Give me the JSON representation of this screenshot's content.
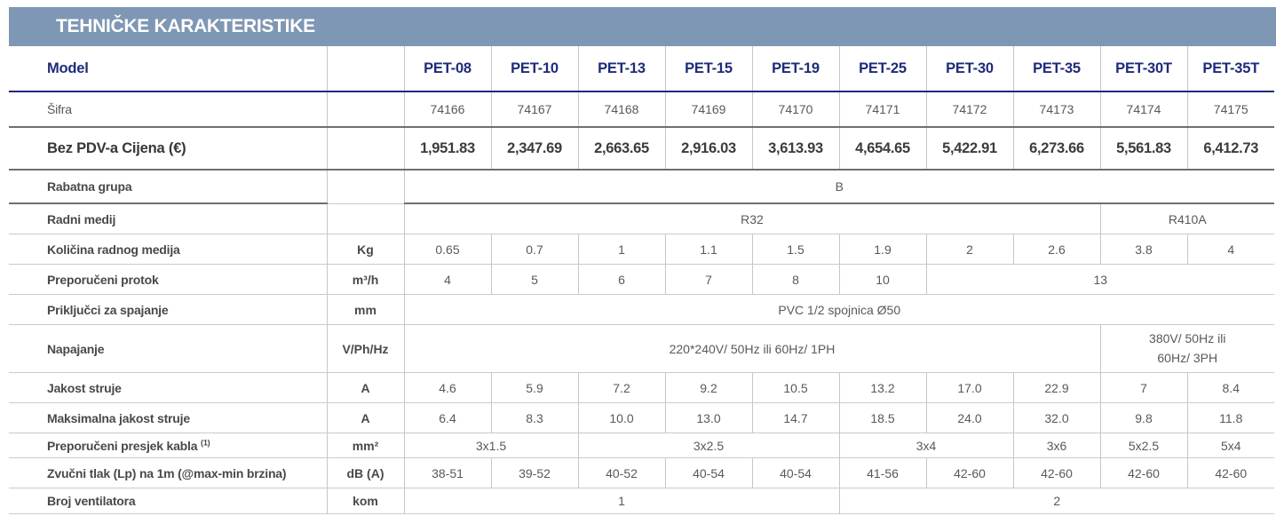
{
  "title": "TEHNIČKE KARAKTERISTIKE",
  "colors": {
    "header_bar": "#7e97b4",
    "model_navy": "#1e2b7b",
    "heavy_rule": "#6e6f71",
    "light_rule": "#c9cacb",
    "label_text": "#48494b",
    "value_text": "#58595c"
  },
  "table": {
    "rows": [
      {
        "id": "model",
        "label": "Model",
        "unit": "",
        "cells": [
          {
            "v": "PET-08"
          },
          {
            "v": "PET-10"
          },
          {
            "v": "PET-13"
          },
          {
            "v": "PET-15"
          },
          {
            "v": "PET-19"
          },
          {
            "v": "PET-25"
          },
          {
            "v": "PET-30"
          },
          {
            "v": "PET-35"
          },
          {
            "v": "PET-30T"
          },
          {
            "v": "PET-35T"
          }
        ]
      },
      {
        "id": "sifra",
        "label": "Šifra",
        "unit": "",
        "cells": [
          {
            "v": "74166"
          },
          {
            "v": "74167"
          },
          {
            "v": "74168"
          },
          {
            "v": "74169"
          },
          {
            "v": "74170"
          },
          {
            "v": "74171"
          },
          {
            "v": "74172"
          },
          {
            "v": "74173"
          },
          {
            "v": "74174"
          },
          {
            "v": "74175"
          }
        ]
      },
      {
        "id": "price",
        "label": "Bez PDV-a Cijena (€)",
        "unit": "",
        "cells": [
          {
            "v": "1,951.83"
          },
          {
            "v": "2,347.69"
          },
          {
            "v": "2,663.65"
          },
          {
            "v": "2,916.03"
          },
          {
            "v": "3,613.93"
          },
          {
            "v": "4,654.65"
          },
          {
            "v": "5,422.91"
          },
          {
            "v": "6,273.66"
          },
          {
            "v": "5,561.83"
          },
          {
            "v": "6,412.73"
          }
        ]
      },
      {
        "id": "rabatna",
        "label": "Rabatna grupa",
        "unit": "",
        "cells": [
          {
            "v": "B",
            "span": 10
          }
        ]
      },
      {
        "id": "radni",
        "label": "Radni medij",
        "unit": "",
        "cells": [
          {
            "v": "R32",
            "span": 8
          },
          {
            "v": "R410A",
            "span": 2
          }
        ]
      },
      {
        "id": "kolicina",
        "label": "Količina radnog medija",
        "unit": "Kg",
        "cells": [
          {
            "v": "0.65"
          },
          {
            "v": "0.7"
          },
          {
            "v": "1"
          },
          {
            "v": "1.1"
          },
          {
            "v": "1.5"
          },
          {
            "v": "1.9"
          },
          {
            "v": "2"
          },
          {
            "v": "2.6"
          },
          {
            "v": "3.8"
          },
          {
            "v": "4"
          }
        ]
      },
      {
        "id": "protok",
        "label": "Preporučeni protok",
        "unit": "m³/h",
        "cells": [
          {
            "v": "4"
          },
          {
            "v": "5"
          },
          {
            "v": "6"
          },
          {
            "v": "7"
          },
          {
            "v": "8"
          },
          {
            "v": "10"
          },
          {
            "v": "13",
            "span": 4
          }
        ]
      },
      {
        "id": "prikljucci",
        "label": "Priključci za spajanje",
        "unit": "mm",
        "cells": [
          {
            "v": "PVC 1/2 spojnica Ø50",
            "span": 10
          }
        ]
      },
      {
        "id": "napajanje",
        "label": "Napajanje",
        "unit": "V/Ph/Hz",
        "cells": [
          {
            "v": "220*240V/ 50Hz ili 60Hz/ 1PH",
            "span": 8
          },
          {
            "v": "380V/ 50Hz ili\n60Hz/ 3PH",
            "span": 2
          }
        ]
      },
      {
        "id": "jakost",
        "label": "Jakost struje",
        "unit": "A",
        "cells": [
          {
            "v": "4.6"
          },
          {
            "v": "5.9"
          },
          {
            "v": "7.2"
          },
          {
            "v": "9.2"
          },
          {
            "v": "10.5"
          },
          {
            "v": "13.2"
          },
          {
            "v": "17.0"
          },
          {
            "v": "22.9"
          },
          {
            "v": "7"
          },
          {
            "v": "8.4"
          }
        ]
      },
      {
        "id": "maks",
        "label": "Maksimalna jakost struje",
        "unit": "A",
        "cells": [
          {
            "v": "6.4"
          },
          {
            "v": "8.3"
          },
          {
            "v": "10.0"
          },
          {
            "v": "13.0"
          },
          {
            "v": "14.7"
          },
          {
            "v": "18.5"
          },
          {
            "v": "24.0"
          },
          {
            "v": "32.0"
          },
          {
            "v": "9.8"
          },
          {
            "v": "11.8"
          }
        ]
      },
      {
        "id": "presjek",
        "label": "Preporučeni presjek kabla",
        "label_sup": "(1)",
        "unit": "mm²",
        "cells": [
          {
            "v": "3x1.5",
            "span": 2
          },
          {
            "v": "3x2.5",
            "span": 3
          },
          {
            "v": "3x4",
            "span": 2
          },
          {
            "v": "3x6"
          },
          {
            "v": "5x2.5"
          },
          {
            "v": "5x4"
          }
        ]
      },
      {
        "id": "zvucni",
        "label": "Zvučni tlak (Lp) na 1m (@max-min brzina)",
        "unit": "dB (A)",
        "cells": [
          {
            "v": "38-51"
          },
          {
            "v": "39-52"
          },
          {
            "v": "40-52"
          },
          {
            "v": "40-54"
          },
          {
            "v": "40-54"
          },
          {
            "v": "41-56"
          },
          {
            "v": "42-60"
          },
          {
            "v": "42-60"
          },
          {
            "v": "42-60"
          },
          {
            "v": "42-60"
          }
        ]
      },
      {
        "id": "ventilatora",
        "label": "Broj ventilatora",
        "unit": "kom",
        "cells": [
          {
            "v": "1",
            "span": 5
          },
          {
            "v": "2",
            "span": 5
          }
        ]
      }
    ]
  }
}
